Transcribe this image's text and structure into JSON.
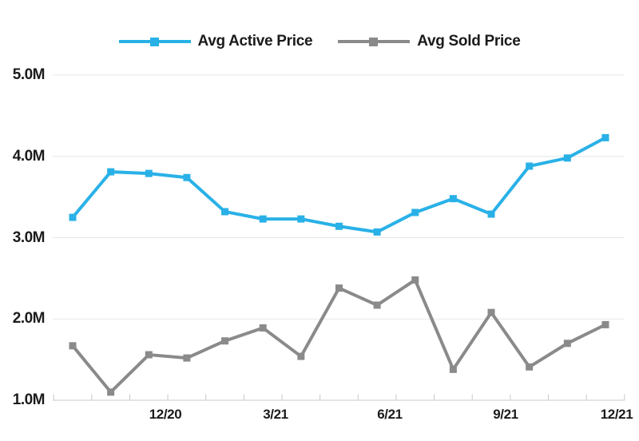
{
  "chart_data": {
    "type": "line",
    "title": "",
    "legend_position": "top",
    "grid": "horizontal",
    "y_axis": {
      "unit": "M",
      "ylim": [
        1.0,
        5.0
      ],
      "tick_labels": [
        "5.0M",
        "4.0M",
        "3.0M",
        "2.0M",
        "1.0M"
      ],
      "tick_values": [
        5.0,
        4.0,
        3.0,
        2.0,
        1.0
      ]
    },
    "x_axis": {
      "visible_tick_labels": [
        "12/20",
        "3/21",
        "6/21",
        "9/21",
        "12/21"
      ],
      "points_per_series": 15,
      "note_points_span": "monthly points, every 3rd month labeled, last label 12/21"
    },
    "series": [
      {
        "name": "Avg Active Price",
        "color": "#29b1e7",
        "marker": "square",
        "values_millions": [
          3.25,
          3.81,
          3.79,
          3.74,
          3.32,
          3.23,
          3.23,
          3.14,
          3.07,
          3.31,
          3.48,
          3.29,
          3.88,
          3.98,
          4.23
        ]
      },
      {
        "name": "Avg Sold Price",
        "color": "#8a8a8a",
        "marker": "square",
        "values_millions": [
          1.67,
          1.1,
          1.56,
          1.52,
          1.73,
          1.89,
          1.54,
          2.38,
          2.17,
          2.48,
          1.38,
          2.08,
          1.41,
          1.7,
          1.93
        ]
      }
    ],
    "colors": {
      "background": "#ffffff",
      "gridline": "#e7e7e7",
      "axis_line": "#c9c9c9",
      "text": "#1b1b1b"
    }
  },
  "legend": {
    "items": [
      {
        "label": "Avg Active Price",
        "color": "#29b1e7"
      },
      {
        "label": "Avg Sold Price",
        "color": "#8a8a8a"
      }
    ]
  }
}
